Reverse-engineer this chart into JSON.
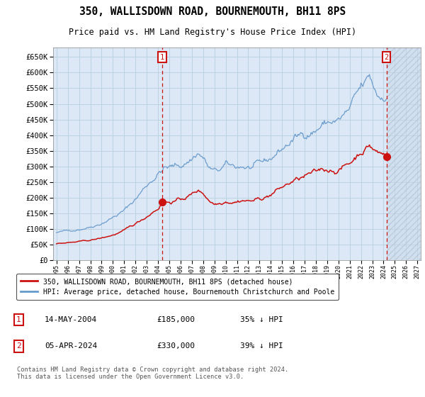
{
  "title": "350, WALLISDOWN ROAD, BOURNEMOUTH, BH11 8PS",
  "subtitle": "Price paid vs. HM Land Registry's House Price Index (HPI)",
  "ylim": [
    0,
    680000
  ],
  "yticks": [
    0,
    50000,
    100000,
    150000,
    200000,
    250000,
    300000,
    350000,
    400000,
    450000,
    500000,
    550000,
    600000,
    650000
  ],
  "xlim_start": 1994.7,
  "xlim_end": 2027.3,
  "background_color": "#ffffff",
  "plot_bg_color": "#dce8f5",
  "grid_color": "#b8cfe0",
  "hpi_color": "#6699cc",
  "price_color": "#cc1111",
  "annotation_color": "#cc1111",
  "purchase1_x": 2004.37,
  "purchase1_y": 185000,
  "purchase1_label": "1",
  "purchase1_date": "14-MAY-2004",
  "purchase1_price": "£185,000",
  "purchase1_hpi": "35% ↓ HPI",
  "purchase2_x": 2024.27,
  "purchase2_y": 330000,
  "purchase2_label": "2",
  "purchase2_date": "05-APR-2024",
  "purchase2_price": "£330,000",
  "purchase2_hpi": "39% ↓ HPI",
  "legend_label1": "350, WALLISDOWN ROAD, BOURNEMOUTH, BH11 8PS (detached house)",
  "legend_label2": "HPI: Average price, detached house, Bournemouth Christchurch and Poole",
  "footer": "Contains HM Land Registry data © Crown copyright and database right 2024.\nThis data is licensed under the Open Government Licence v3.0."
}
